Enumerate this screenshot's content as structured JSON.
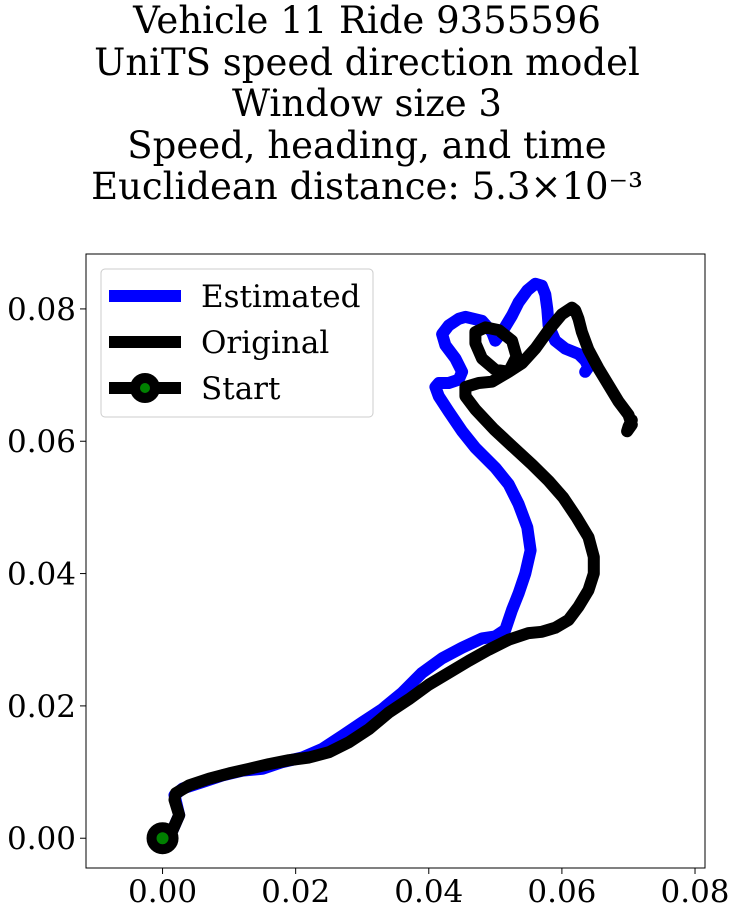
{
  "chart_data": {
    "type": "line",
    "title_lines": [
      "Vehicle 11 Ride 9355596",
      "UniTS speed direction model",
      "Window size 3",
      "Speed, heading, and time",
      "Euclidean distance: 5.3×10⁻³"
    ],
    "xlabel": "",
    "ylabel": "",
    "xlim": [
      -0.0115,
      0.0815
    ],
    "ylim": [
      -0.0045,
      0.0883
    ],
    "xticks": [
      0.0,
      0.02,
      0.04,
      0.06,
      0.08
    ],
    "yticks": [
      0.0,
      0.02,
      0.04,
      0.06,
      0.08
    ],
    "xtick_labels": [
      "0.00",
      "0.02",
      "0.04",
      "0.06",
      "0.08"
    ],
    "ytick_labels": [
      "0.00",
      "0.02",
      "0.04",
      "0.06",
      "0.08"
    ],
    "grid": false,
    "legend_position": "top-left",
    "series": [
      {
        "name": "Estimated",
        "color": "#0000ff",
        "x": [
          0.0,
          0.0015,
          0.0025,
          0.0018,
          0.003,
          0.006,
          0.009,
          0.012,
          0.015,
          0.018,
          0.021,
          0.024,
          0.027,
          0.03,
          0.033,
          0.036,
          0.039,
          0.042,
          0.045,
          0.048,
          0.05,
          0.0515,
          0.0525,
          0.0535,
          0.0545,
          0.0553,
          0.0548,
          0.0535,
          0.052,
          0.05,
          0.047,
          0.045,
          0.043,
          0.0415,
          0.041,
          0.0415,
          0.043,
          0.0445,
          0.045,
          0.044,
          0.0425,
          0.042,
          0.043,
          0.0445,
          0.0455,
          0.048,
          0.0495,
          0.05,
          0.051,
          0.0525,
          0.0535,
          0.0548,
          0.056,
          0.057,
          0.0575,
          0.0578,
          0.058,
          0.059,
          0.0605,
          0.0625,
          0.0635,
          0.064,
          0.0635
        ],
        "y": [
          0.0,
          0.0012,
          0.0035,
          0.0065,
          0.0075,
          0.0085,
          0.0095,
          0.0102,
          0.0105,
          0.0115,
          0.0122,
          0.0135,
          0.0155,
          0.0175,
          0.0195,
          0.022,
          0.025,
          0.0272,
          0.0288,
          0.0302,
          0.0305,
          0.0315,
          0.0345,
          0.037,
          0.04,
          0.0435,
          0.047,
          0.0505,
          0.0535,
          0.056,
          0.059,
          0.0615,
          0.0645,
          0.0668,
          0.0682,
          0.0688,
          0.0688,
          0.0693,
          0.0705,
          0.0725,
          0.0745,
          0.0762,
          0.0775,
          0.0785,
          0.0788,
          0.0782,
          0.0765,
          0.0752,
          0.0765,
          0.079,
          0.081,
          0.0828,
          0.0838,
          0.0835,
          0.0822,
          0.08,
          0.0775,
          0.0752,
          0.074,
          0.0732,
          0.0722,
          0.0712,
          0.0705
        ]
      },
      {
        "name": "Original",
        "color": "#000000",
        "x": [
          0.0,
          0.0015,
          0.0025,
          0.0018,
          0.002,
          0.004,
          0.007,
          0.01,
          0.013,
          0.016,
          0.019,
          0.022,
          0.025,
          0.028,
          0.031,
          0.034,
          0.037,
          0.04,
          0.043,
          0.046,
          0.049,
          0.052,
          0.055,
          0.057,
          0.059,
          0.061,
          0.0625,
          0.064,
          0.0648,
          0.0648,
          0.064,
          0.0622,
          0.0602,
          0.058,
          0.0555,
          0.0528,
          0.0498,
          0.047,
          0.0455,
          0.0455,
          0.0475,
          0.0495,
          0.052,
          0.0532,
          0.0525,
          0.0505,
          0.0485,
          0.047,
          0.047,
          0.048,
          0.05,
          0.052,
          0.054,
          0.056,
          0.058,
          0.06,
          0.0615,
          0.062,
          0.0625,
          0.063,
          0.064,
          0.0655,
          0.067,
          0.0685,
          0.07,
          0.0705,
          0.0698,
          0.07,
          0.0705
        ],
        "y": [
          0.0,
          0.0012,
          0.0035,
          0.0058,
          0.0068,
          0.008,
          0.009,
          0.0098,
          0.0105,
          0.0112,
          0.0118,
          0.0122,
          0.013,
          0.0145,
          0.0165,
          0.019,
          0.021,
          0.0232,
          0.025,
          0.0268,
          0.0285,
          0.03,
          0.031,
          0.0312,
          0.0318,
          0.033,
          0.035,
          0.0375,
          0.04,
          0.0425,
          0.0455,
          0.0485,
          0.0515,
          0.054,
          0.0565,
          0.059,
          0.0618,
          0.0648,
          0.0668,
          0.0682,
          0.0688,
          0.069,
          0.0705,
          0.0728,
          0.0752,
          0.0768,
          0.0772,
          0.0765,
          0.0748,
          0.0725,
          0.0708,
          0.0705,
          0.0718,
          0.074,
          0.0768,
          0.0792,
          0.0802,
          0.0798,
          0.0785,
          0.0765,
          0.0738,
          0.071,
          0.0685,
          0.066,
          0.064,
          0.0625,
          0.0615,
          0.0622,
          0.0632
        ]
      },
      {
        "name": "Start",
        "marker_color": "#008000",
        "edge_color": "#000000",
        "x": [
          0.0
        ],
        "y": [
          0.0
        ]
      }
    ]
  }
}
